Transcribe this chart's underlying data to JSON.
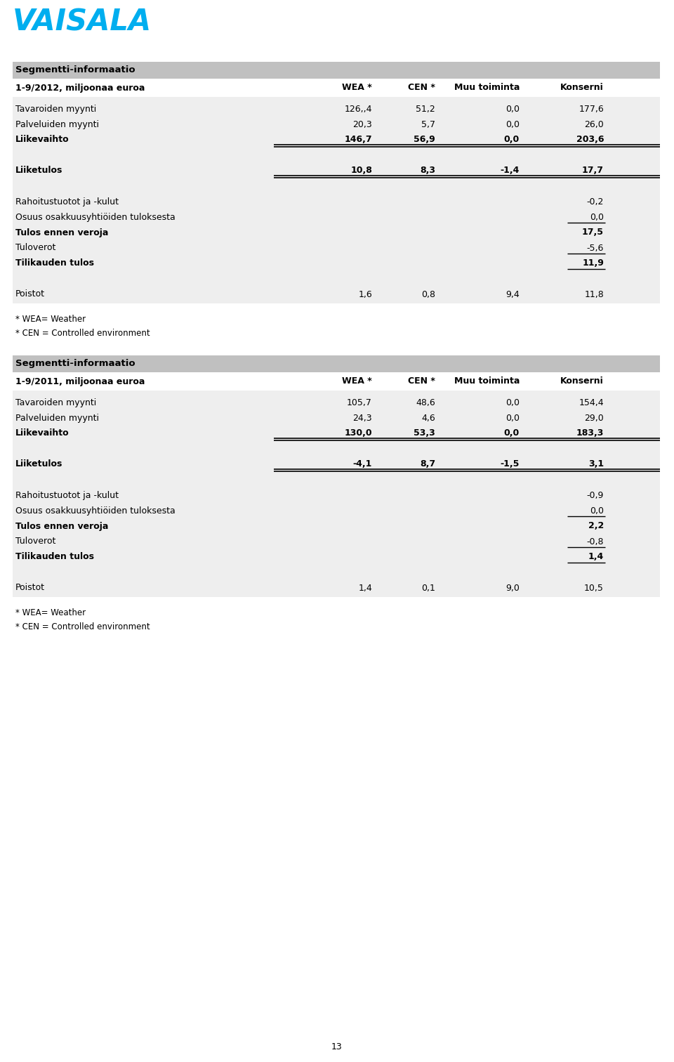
{
  "logo_text": "VAISALA",
  "logo_color": "#00AEEF",
  "background_color": "#FFFFFF",
  "table_bg": "#EEEEEE",
  "header_bg": "#C0C0C0",
  "page_number": "13",
  "section1": {
    "header": "Segmentti-informaatio",
    "subheader": "1-9/2012, miljoonaa euroa",
    "columns": [
      "WEA *",
      "CEN *",
      "Muu toiminta",
      "Konserni"
    ],
    "rows": [
      {
        "label": "Tavaroiden myynti",
        "bold": false,
        "values": [
          "126,,4",
          "51,2",
          "0,0",
          "177,6"
        ],
        "line_below": false,
        "double_line": false
      },
      {
        "label": "Palveluiden myynti",
        "bold": false,
        "values": [
          "20,3",
          "5,7",
          "0,0",
          "26,0"
        ],
        "line_below": false,
        "double_line": false
      },
      {
        "label": "Liikevaihto",
        "bold": true,
        "values": [
          "146,7",
          "56,9",
          "0,0",
          "203,6"
        ],
        "line_below": true,
        "double_line": true
      },
      {
        "label": "",
        "bold": false,
        "values": [
          "",
          "",
          "",
          ""
        ],
        "line_below": false,
        "double_line": false
      },
      {
        "label": "Liiketulos",
        "bold": true,
        "values": [
          "10,8",
          "8,3",
          "-1,4",
          "17,7"
        ],
        "line_below": true,
        "double_line": true
      },
      {
        "label": "",
        "bold": false,
        "values": [
          "",
          "",
          "",
          ""
        ],
        "line_below": false,
        "double_line": false
      },
      {
        "label": "Rahoitustuotot ja -kulut",
        "bold": false,
        "values": [
          "",
          "",
          "",
          "-0,2"
        ],
        "line_below": false,
        "double_line": false
      },
      {
        "label": "Osuus osakkuusyhtiöiden tuloksesta",
        "bold": false,
        "values": [
          "",
          "",
          "",
          "0,0"
        ],
        "line_below": true,
        "double_line": false,
        "konserni_only": true
      },
      {
        "label": "Tulos ennen veroja",
        "bold": true,
        "values": [
          "",
          "",
          "",
          "17,5"
        ],
        "line_below": false,
        "double_line": false
      },
      {
        "label": "Tuloverot",
        "bold": false,
        "values": [
          "",
          "",
          "",
          "-5,6"
        ],
        "line_below": true,
        "double_line": false,
        "konserni_only": true
      },
      {
        "label": "Tilikauden tulos",
        "bold": true,
        "values": [
          "",
          "",
          "",
          "11,9"
        ],
        "line_below": true,
        "double_line": false,
        "konserni_only": true
      },
      {
        "label": "",
        "bold": false,
        "values": [
          "",
          "",
          "",
          ""
        ],
        "line_below": false,
        "double_line": false
      },
      {
        "label": "Poistot",
        "bold": false,
        "values": [
          "1,6",
          "0,8",
          "9,4",
          "11,8"
        ],
        "line_below": false,
        "double_line": false
      }
    ],
    "footnotes": [
      "* WEA= Weather",
      "* CEN = Controlled environment"
    ]
  },
  "section2": {
    "header": "Segmentti-informaatio",
    "subheader": "1-9/2011, miljoonaa euroa",
    "columns": [
      "WEA *",
      "CEN *",
      "Muu toiminta",
      "Konserni"
    ],
    "rows": [
      {
        "label": "Tavaroiden myynti",
        "bold": false,
        "values": [
          "105,7",
          "48,6",
          "0,0",
          "154,4"
        ],
        "line_below": false,
        "double_line": false
      },
      {
        "label": "Palveluiden myynti",
        "bold": false,
        "values": [
          "24,3",
          "4,6",
          "0,0",
          "29,0"
        ],
        "line_below": false,
        "double_line": false
      },
      {
        "label": "Liikevaihto",
        "bold": true,
        "values": [
          "130,0",
          "53,3",
          "0,0",
          "183,3"
        ],
        "line_below": true,
        "double_line": true
      },
      {
        "label": "",
        "bold": false,
        "values": [
          "",
          "",
          "",
          ""
        ],
        "line_below": false,
        "double_line": false
      },
      {
        "label": "Liiketulos",
        "bold": true,
        "values": [
          "-4,1",
          "8,7",
          "-1,5",
          "3,1"
        ],
        "line_below": true,
        "double_line": true
      },
      {
        "label": "",
        "bold": false,
        "values": [
          "",
          "",
          "",
          ""
        ],
        "line_below": false,
        "double_line": false
      },
      {
        "label": "Rahoitustuotot ja -kulut",
        "bold": false,
        "values": [
          "",
          "",
          "",
          "-0,9"
        ],
        "line_below": false,
        "double_line": false
      },
      {
        "label": "Osuus osakkuusyhtiöiden tuloksesta",
        "bold": false,
        "values": [
          "",
          "",
          "",
          "0,0"
        ],
        "line_below": true,
        "double_line": false,
        "konserni_only": true
      },
      {
        "label": "Tulos ennen veroja",
        "bold": true,
        "values": [
          "",
          "",
          "",
          "2,2"
        ],
        "line_below": false,
        "double_line": false
      },
      {
        "label": "Tuloverot",
        "bold": false,
        "values": [
          "",
          "",
          "",
          "-0,8"
        ],
        "line_below": true,
        "double_line": false,
        "konserni_only": true
      },
      {
        "label": "Tilikauden tulos",
        "bold": true,
        "values": [
          "",
          "",
          "",
          "1,4"
        ],
        "line_below": true,
        "double_line": false,
        "konserni_only": true
      },
      {
        "label": "",
        "bold": false,
        "values": [
          "",
          "",
          "",
          ""
        ],
        "line_below": false,
        "double_line": false
      },
      {
        "label": "Poistot",
        "bold": false,
        "values": [
          "1,4",
          "0,1",
          "9,0",
          "10,5"
        ],
        "line_below": false,
        "double_line": false
      }
    ],
    "footnotes": [
      "* WEA= Weather",
      "* CEN = Controlled environment"
    ]
  }
}
